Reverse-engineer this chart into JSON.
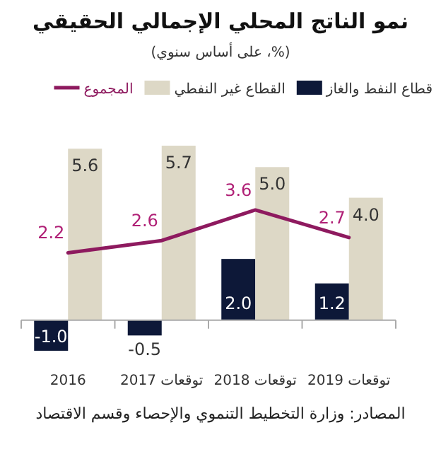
{
  "chart_data": {
    "type": "bar",
    "title": "نمو الناتج المحلي الإجمالي الحقيقي",
    "subtitle": "(%، على أساس سنوي)",
    "categories": [
      "2016",
      "توقعات 2017",
      "توقعات 2018",
      "توقعات 2019"
    ],
    "series": [
      {
        "name": "قطاع النفط والغاز",
        "color": "#0d1838",
        "values": [
          -1.0,
          -0.5,
          2.0,
          1.2
        ],
        "value_labels": [
          "-1.0",
          "-0.5",
          "2.0",
          "1.2"
        ]
      },
      {
        "name": "القطاع غير النفطي",
        "color": "#ddd8c6",
        "values": [
          5.6,
          5.7,
          5.0,
          4.0
        ],
        "value_labels": [
          "5.6",
          "5.7",
          "5.0",
          "4.0"
        ]
      },
      {
        "name": "المجموع",
        "type": "line",
        "color": "#8e1a5f",
        "values": [
          2.2,
          2.6,
          3.6,
          2.7
        ],
        "value_labels": [
          "2.2",
          "2.6",
          "3.6",
          "2.7"
        ]
      }
    ],
    "tick_labels": "x",
    "legend": "top",
    "marker": "none",
    "line_style": "solid",
    "annotations": [
      "المصادر: وزارة التخطيط التنموي والإحصاء وقسم الاقتصاد"
    ]
  }
}
